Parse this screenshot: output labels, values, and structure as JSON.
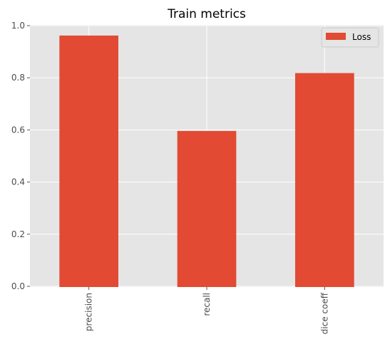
{
  "chart_data": {
    "type": "bar",
    "title": "Train metrics",
    "xlabel": "",
    "ylabel": "",
    "categories": [
      "precision",
      "recall",
      "dice coeff"
    ],
    "series": [
      {
        "name": "Loss",
        "values": [
          0.962,
          0.596,
          0.818
        ],
        "color": "#e24a33"
      }
    ],
    "ylim": [
      0,
      1.0
    ],
    "yticks": [
      0.0,
      0.2,
      0.4,
      0.6,
      0.8,
      1.0
    ],
    "ytick_labels": [
      "0.0",
      "0.2",
      "0.4",
      "0.6",
      "0.8",
      "1.0"
    ],
    "grid": true,
    "legend_position": "top-right",
    "x_tick_rotation": "vertical",
    "colors": {
      "plot_background": "#e5e5e5",
      "grid": "#ffffff",
      "bar": "#e24a33"
    }
  }
}
